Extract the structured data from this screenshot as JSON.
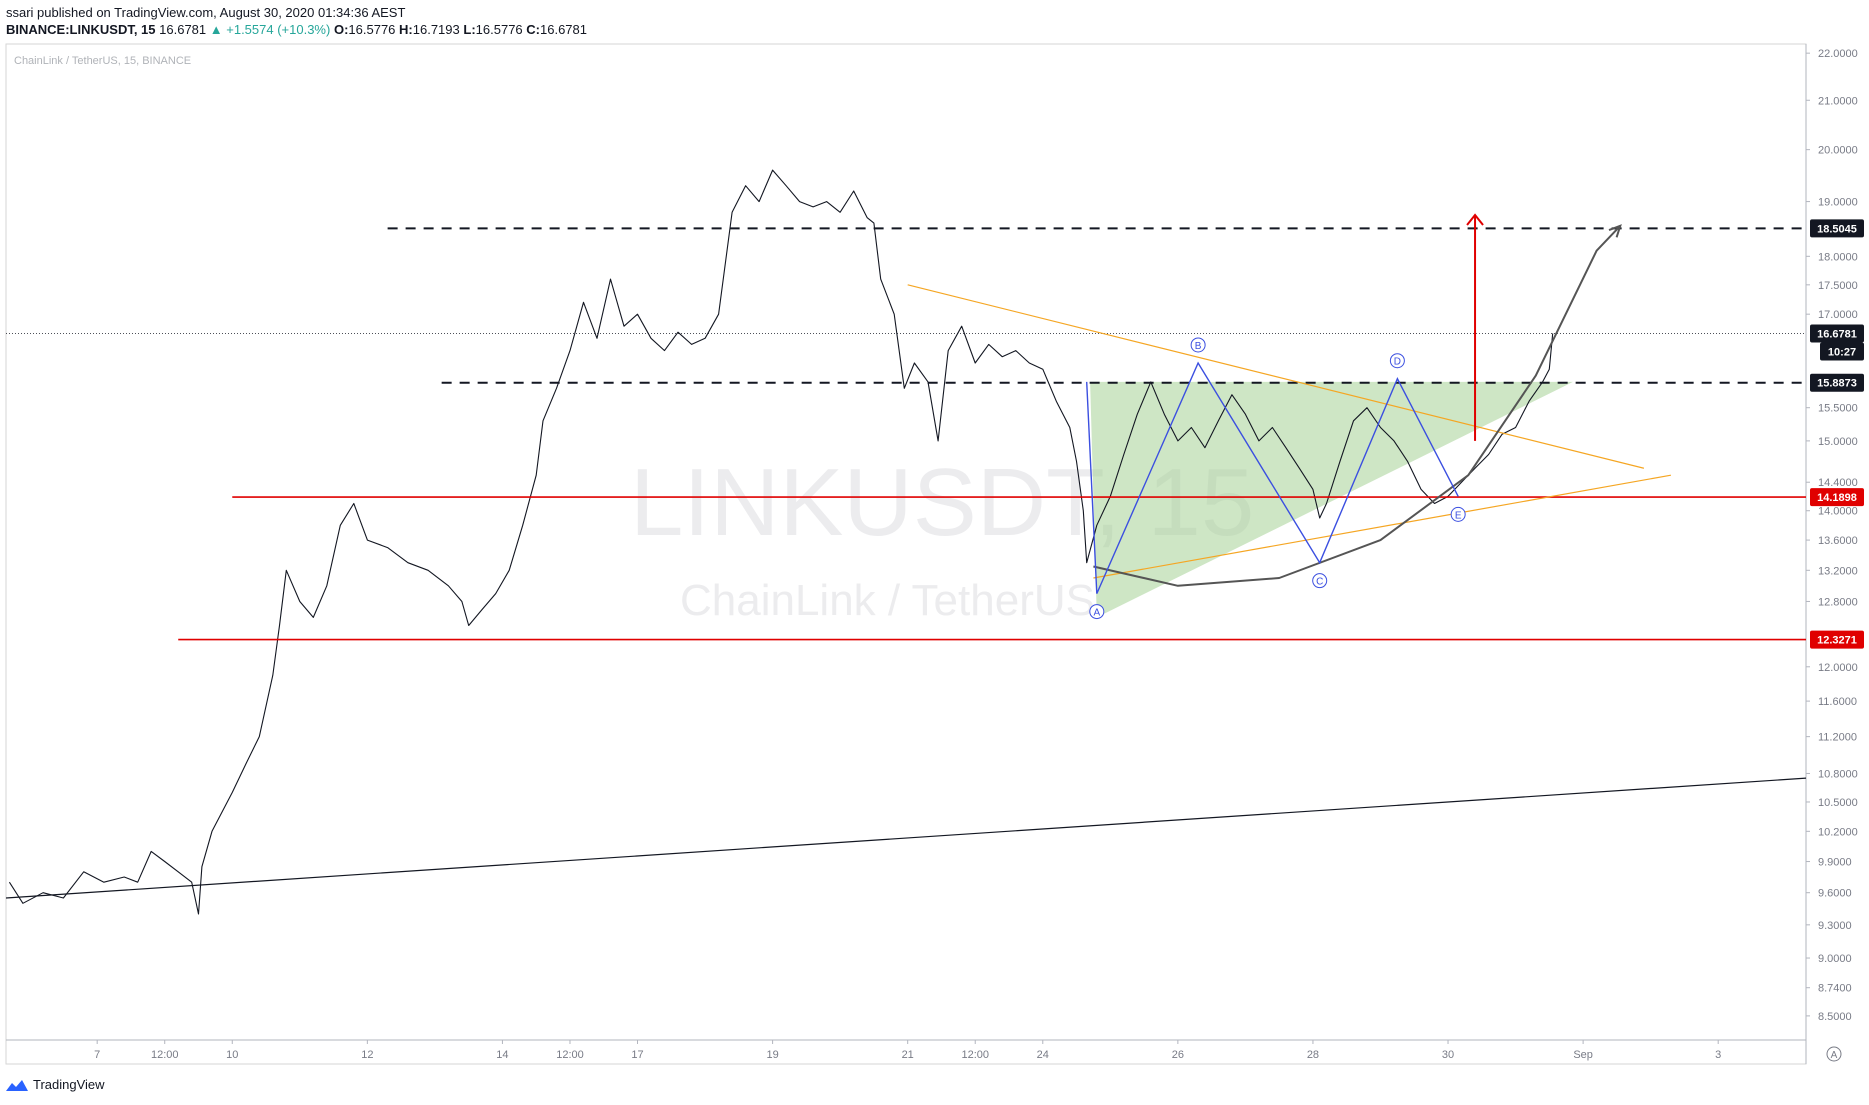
{
  "header": {
    "publish_line": "ssari published on TradingView.com, August 30, 2020 01:34:36 AEST",
    "symbol": "BINANCE:LINKUSDT, 15",
    "last": "16.6781",
    "change": "▲ +1.5574 (+10.3%)",
    "o_label": "O:",
    "o": "16.5776",
    "h_label": "H:",
    "h": "16.7193",
    "l_label": "L:",
    "l": "16.5776",
    "c_label": "C:",
    "c": "16.6781"
  },
  "legend_label": "ChainLink / TetherUS, 15, BINANCE",
  "watermark": {
    "symbol": "LINKUSDT, 15",
    "name": "ChainLink / TetherUS"
  },
  "footer": {
    "brand": "TradingView",
    "axis_badge": "A"
  },
  "colors": {
    "up": "#26a69a",
    "down": "#131722",
    "support": "#e00000",
    "trendline_orange": "#f5a623",
    "pattern_blue": "#3b4fe0",
    "zone_fill": "#a5d196",
    "arc": "#555555"
  },
  "chart_data": {
    "type": "candlestick",
    "symbol": "LINKUSDT",
    "interval": "15",
    "y_axis": {
      "ticks": [
        8.5,
        8.74,
        9.0,
        9.3,
        9.6,
        9.9,
        10.2,
        10.5,
        10.8,
        11.2,
        11.6,
        12.0,
        12.8,
        13.2,
        13.6,
        14.0,
        14.4,
        15.0,
        15.5,
        17.0,
        17.5,
        18.0,
        19.0,
        20.0,
        21.0,
        22.0
      ],
      "tick_labels": [
        "8.5000",
        "8.7400",
        "9.0000",
        "9.3000",
        "9.6000",
        "9.9000",
        "10.2000",
        "10.5000",
        "10.8000",
        "11.2000",
        "11.6000",
        "12.0000",
        "12.8000",
        "13.2000",
        "13.6000",
        "14.0000",
        "14.4000",
        "15.0000",
        "15.5000",
        "17.0000",
        "17.5000",
        "18.0000",
        "19.0000",
        "20.0000",
        "21.0000",
        "22.0000"
      ],
      "scale": "log",
      "range": [
        8.3,
        22.2
      ]
    },
    "x_axis": {
      "ticks": [
        "7",
        "12:00",
        "10",
        "12",
        "14",
        "12:00",
        "17",
        "19",
        "21",
        "12:00",
        "24",
        "26",
        "28",
        "30",
        "Sep",
        "3"
      ],
      "tick_pos": [
        6.5,
        7.5,
        8.5,
        10.5,
        12.5,
        13.5,
        14.5,
        16.5,
        18.5,
        19.5,
        20.5,
        22.5,
        24.5,
        26.5,
        28.5,
        30.5
      ],
      "range": [
        5.15,
        31.8
      ]
    },
    "price_labels": [
      {
        "value": 18.5045,
        "label": "18.5045",
        "style": "dark"
      },
      {
        "value": 16.6781,
        "label": "16.6781",
        "style": "dark"
      },
      {
        "value": 15.8873,
        "label": "15.8873",
        "style": "dark"
      },
      {
        "value": 14.1898,
        "label": "14.1898",
        "style": "red"
      },
      {
        "value": 12.3271,
        "label": "12.3271",
        "style": "red"
      }
    ],
    "countdown": "10:27",
    "last_price": 16.6781,
    "price_path": [
      [
        5.2,
        9.7
      ],
      [
        5.4,
        9.5
      ],
      [
        5.7,
        9.6
      ],
      [
        6.0,
        9.55
      ],
      [
        6.3,
        9.8
      ],
      [
        6.6,
        9.7
      ],
      [
        6.9,
        9.75
      ],
      [
        7.1,
        9.7
      ],
      [
        7.3,
        10.0
      ],
      [
        7.5,
        9.9
      ],
      [
        7.7,
        9.8
      ],
      [
        7.9,
        9.7
      ],
      [
        8.0,
        9.4
      ],
      [
        8.05,
        9.85
      ],
      [
        8.2,
        10.2
      ],
      [
        8.5,
        10.6
      ],
      [
        8.7,
        10.9
      ],
      [
        8.9,
        11.2
      ],
      [
        9.1,
        11.9
      ],
      [
        9.2,
        12.5
      ],
      [
        9.3,
        13.2
      ],
      [
        9.5,
        12.8
      ],
      [
        9.7,
        12.6
      ],
      [
        9.9,
        13.0
      ],
      [
        10.1,
        13.8
      ],
      [
        10.3,
        14.1
      ],
      [
        10.5,
        13.6
      ],
      [
        10.8,
        13.5
      ],
      [
        11.1,
        13.3
      ],
      [
        11.4,
        13.2
      ],
      [
        11.7,
        13.0
      ],
      [
        11.9,
        12.8
      ],
      [
        12.0,
        12.5
      ],
      [
        12.2,
        12.7
      ],
      [
        12.4,
        12.9
      ],
      [
        12.6,
        13.2
      ],
      [
        12.8,
        13.8
      ],
      [
        13.0,
        14.5
      ],
      [
        13.1,
        15.3
      ],
      [
        13.3,
        15.8
      ],
      [
        13.5,
        16.4
      ],
      [
        13.7,
        17.2
      ],
      [
        13.9,
        16.6
      ],
      [
        14.1,
        17.6
      ],
      [
        14.3,
        16.8
      ],
      [
        14.5,
        17.0
      ],
      [
        14.7,
        16.6
      ],
      [
        14.9,
        16.4
      ],
      [
        15.1,
        16.7
      ],
      [
        15.3,
        16.5
      ],
      [
        15.5,
        16.6
      ],
      [
        15.7,
        17.0
      ],
      [
        15.9,
        18.8
      ],
      [
        16.1,
        19.3
      ],
      [
        16.3,
        19.0
      ],
      [
        16.5,
        19.6
      ],
      [
        16.7,
        19.3
      ],
      [
        16.9,
        19.0
      ],
      [
        17.1,
        18.9
      ],
      [
        17.3,
        19.0
      ],
      [
        17.5,
        18.8
      ],
      [
        17.7,
        19.2
      ],
      [
        17.9,
        18.7
      ],
      [
        18.0,
        18.6
      ],
      [
        18.1,
        17.6
      ],
      [
        18.3,
        17.0
      ],
      [
        18.45,
        15.8
      ],
      [
        18.6,
        16.2
      ],
      [
        18.8,
        15.9
      ],
      [
        18.95,
        15.0
      ],
      [
        19.1,
        16.4
      ],
      [
        19.3,
        16.8
      ],
      [
        19.5,
        16.2
      ],
      [
        19.7,
        16.5
      ],
      [
        19.9,
        16.3
      ],
      [
        20.1,
        16.4
      ],
      [
        20.3,
        16.2
      ],
      [
        20.5,
        16.1
      ],
      [
        20.7,
        15.6
      ],
      [
        20.9,
        15.2
      ],
      [
        21.0,
        14.7
      ],
      [
        21.1,
        14.0
      ],
      [
        21.15,
        13.3
      ],
      [
        21.3,
        13.8
      ],
      [
        21.5,
        14.2
      ],
      [
        21.7,
        14.8
      ],
      [
        21.9,
        15.4
      ],
      [
        22.1,
        15.9
      ],
      [
        22.3,
        15.4
      ],
      [
        22.5,
        15.0
      ],
      [
        22.7,
        15.2
      ],
      [
        22.9,
        14.9
      ],
      [
        23.1,
        15.3
      ],
      [
        23.3,
        15.7
      ],
      [
        23.5,
        15.4
      ],
      [
        23.7,
        15.0
      ],
      [
        23.9,
        15.2
      ],
      [
        24.1,
        14.9
      ],
      [
        24.3,
        14.6
      ],
      [
        24.5,
        14.3
      ],
      [
        24.6,
        13.9
      ],
      [
        24.7,
        14.1
      ],
      [
        24.9,
        14.7
      ],
      [
        25.1,
        15.3
      ],
      [
        25.3,
        15.5
      ],
      [
        25.5,
        15.2
      ],
      [
        25.7,
        15.0
      ],
      [
        25.9,
        14.7
      ],
      [
        26.1,
        14.3
      ],
      [
        26.3,
        14.1
      ],
      [
        26.5,
        14.2
      ],
      [
        26.7,
        14.4
      ],
      [
        26.9,
        14.6
      ],
      [
        27.1,
        14.8
      ],
      [
        27.3,
        15.1
      ],
      [
        27.5,
        15.2
      ],
      [
        27.7,
        15.6
      ],
      [
        27.9,
        15.9
      ],
      [
        28.0,
        16.1
      ],
      [
        28.05,
        16.68
      ]
    ],
    "horizontal_levels": [
      {
        "value": 18.5045,
        "style": "dashed",
        "color": "#131722",
        "x_from": 10.8
      },
      {
        "value": 15.8873,
        "style": "dashed",
        "color": "#131722",
        "x_from": 11.6
      },
      {
        "value": 14.1898,
        "style": "solid",
        "color": "#e00000",
        "x_from": 8.5
      },
      {
        "value": 12.3271,
        "style": "solid",
        "color": "#e00000",
        "x_from": 7.7
      }
    ],
    "drawings": {
      "long_trendline": [
        [
          5.15,
          9.55
        ],
        [
          31.8,
          10.75
        ]
      ],
      "orange_upper": [
        [
          18.5,
          17.5
        ],
        [
          29.4,
          14.6
        ]
      ],
      "orange_lower": [
        [
          21.25,
          13.1
        ],
        [
          29.8,
          14.5
        ]
      ],
      "green_zone": [
        [
          21.2,
          15.9
        ],
        [
          28.35,
          15.9
        ],
        [
          21.3,
          12.6
        ]
      ],
      "abcde": [
        {
          "label": "A",
          "x": 21.3,
          "y": 12.9
        },
        {
          "label": "B",
          "x": 22.8,
          "y": 16.2
        },
        {
          "label": "C",
          "x": 24.6,
          "y": 13.3
        },
        {
          "label": "D",
          "x": 25.75,
          "y": 15.95
        },
        {
          "label": "E",
          "x": 26.65,
          "y": 14.2
        }
      ],
      "abcde_tail_start": {
        "x": 21.15,
        "y": 15.9
      },
      "red_arrow": {
        "x": 26.9,
        "from": 15.0,
        "to": 18.75
      },
      "arc": [
        [
          21.25,
          13.25
        ],
        [
          22.5,
          13.0
        ],
        [
          24.0,
          13.1
        ],
        [
          25.5,
          13.6
        ],
        [
          26.8,
          14.5
        ],
        [
          27.8,
          16.0
        ],
        [
          28.7,
          18.1
        ],
        [
          29.05,
          18.55
        ]
      ]
    }
  }
}
